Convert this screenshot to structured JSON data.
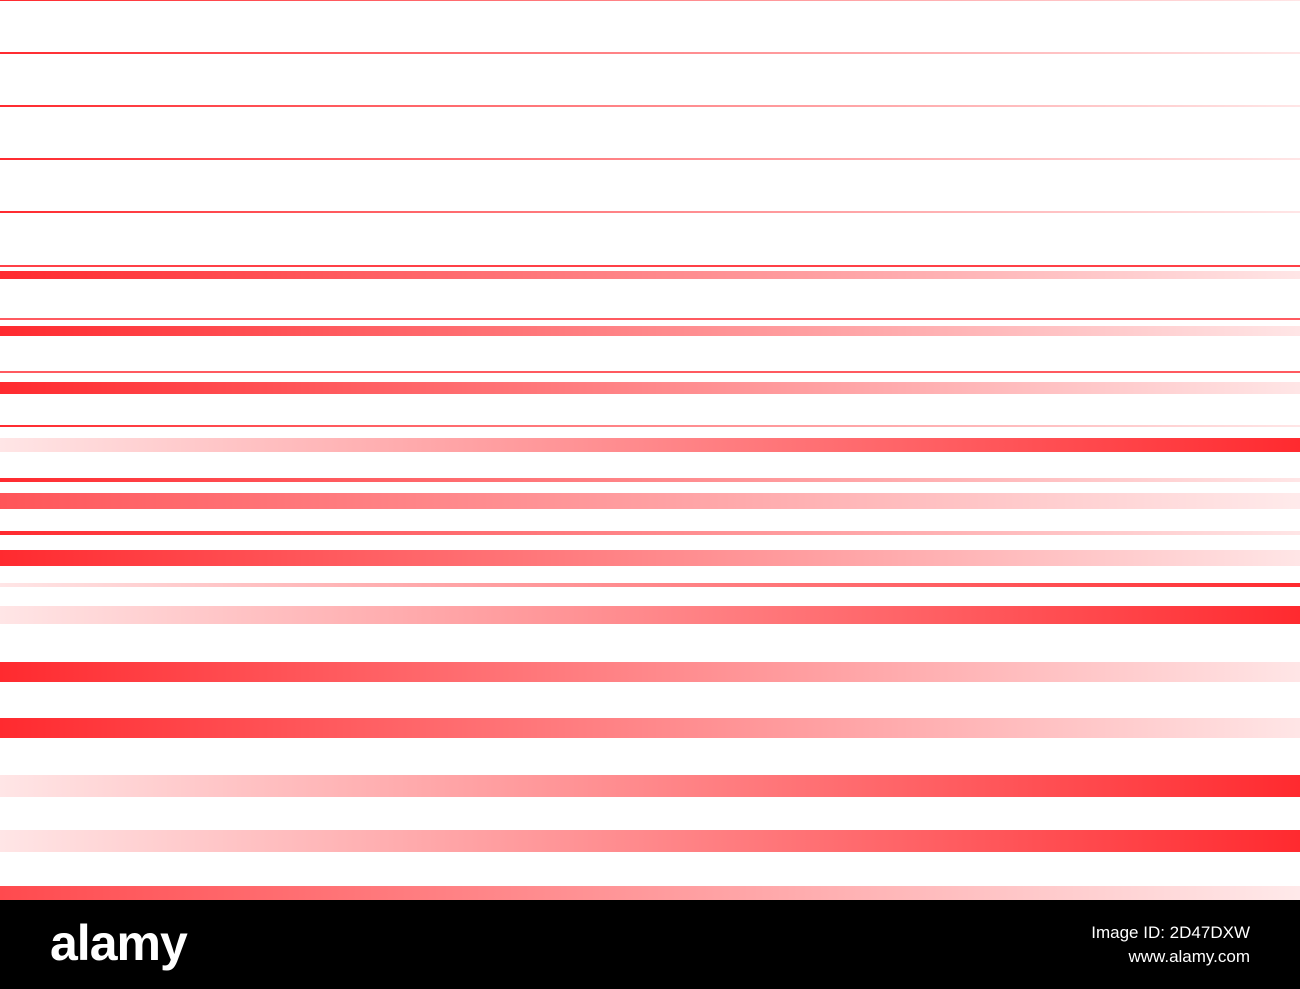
{
  "footer": {
    "logo": "alamy",
    "image_id": "Image ID: 2D47DXW",
    "url": "www.alamy.com"
  }
}
